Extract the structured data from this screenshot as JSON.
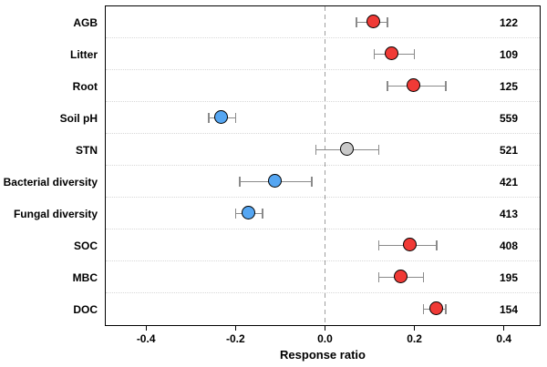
{
  "chart_data": {
    "type": "scatter",
    "subtype": "forest-plot-with-error-bars",
    "title": "",
    "xlabel": "Response ratio",
    "ylabel": "",
    "xlim": [
      -0.49,
      0.48
    ],
    "x_ticks": [
      "-0.4",
      "-0.2",
      "0.0",
      "0.2",
      "0.4"
    ],
    "x_tick_values": [
      -0.4,
      -0.2,
      0,
      0.2,
      0.4
    ],
    "zero_reference_line": 0,
    "grid": "horizontal dotted lines between categories",
    "legend": "none",
    "colors": {
      "positive_effect": "#f03a36",
      "negative_effect": "#55a6f2",
      "neutral_effect": "#c9c9c9",
      "point_outline": "#000000",
      "error_bar": "#8a8a8a",
      "reference_line": "#9e9e9e",
      "gridline": "#d8d8d8"
    },
    "rows": [
      {
        "label": "AGB",
        "mean": 0.11,
        "ci_low": 0.07,
        "ci_high": 0.14,
        "n": "122",
        "color": "#f03a36"
      },
      {
        "label": "Litter",
        "mean": 0.15,
        "ci_low": 0.11,
        "ci_high": 0.2,
        "n": "109",
        "color": "#f03a36"
      },
      {
        "label": "Root",
        "mean": 0.2,
        "ci_low": 0.14,
        "ci_high": 0.27,
        "n": "125",
        "color": "#f03a36"
      },
      {
        "label": "Soil pH",
        "mean": -0.23,
        "ci_low": -0.26,
        "ci_high": -0.2,
        "n": "559",
        "color": "#55a6f2"
      },
      {
        "label": "STN",
        "mean": 0.05,
        "ci_low": -0.02,
        "ci_high": 0.12,
        "n": "521",
        "color": "#c9c9c9"
      },
      {
        "label": "Bacterial diversity",
        "mean": -0.11,
        "ci_low": -0.19,
        "ci_high": -0.03,
        "n": "421",
        "color": "#55a6f2"
      },
      {
        "label": "Fungal diversity",
        "mean": -0.17,
        "ci_low": -0.2,
        "ci_high": -0.14,
        "n": "413",
        "color": "#55a6f2"
      },
      {
        "label": "SOC",
        "mean": 0.19,
        "ci_low": 0.12,
        "ci_high": 0.25,
        "n": "408",
        "color": "#f03a36"
      },
      {
        "label": "MBC",
        "mean": 0.17,
        "ci_low": 0.12,
        "ci_high": 0.22,
        "n": "195",
        "color": "#f03a36"
      },
      {
        "label": "DOC",
        "mean": 0.25,
        "ci_low": 0.22,
        "ci_high": 0.27,
        "n": "154",
        "color": "#f03a36"
      }
    ]
  }
}
